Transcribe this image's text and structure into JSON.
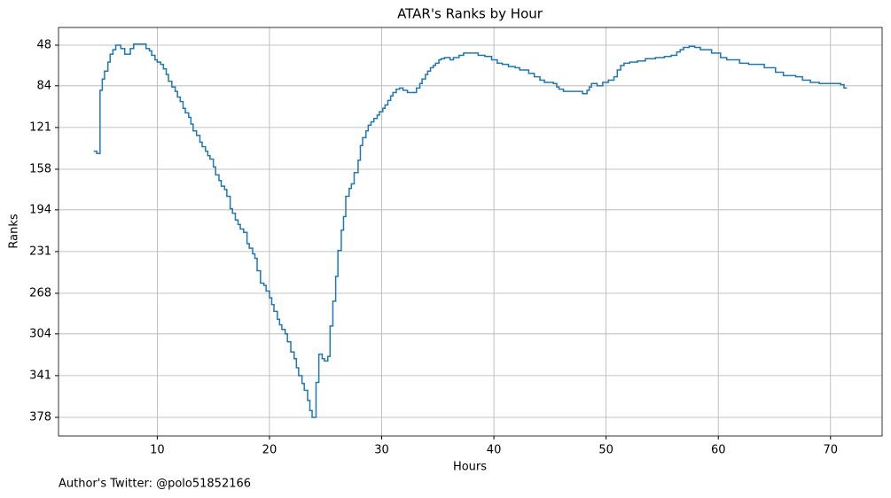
{
  "chart_data": {
    "type": "line",
    "step": "post",
    "title": "ATAR's Ranks by Hour",
    "x_label": "Hours",
    "y_label": "Ranks",
    "footnote": "Author's Twitter: @polo51852166",
    "color": "#1f77b4",
    "grid": true,
    "invert_y": true,
    "xlim": [
      1.2,
      74.6
    ],
    "xticks": [
      10,
      20,
      30,
      40,
      50,
      60,
      70
    ],
    "ylim": [
      394.5,
      32.3
    ],
    "yticks": [
      48,
      84,
      121,
      158,
      194,
      231,
      268,
      304,
      341,
      378
    ],
    "x": [
      4.4,
      4.6,
      4.9,
      5.1,
      5.3,
      5.6,
      5.8,
      6.05,
      6.3,
      6.75,
      7.1,
      7.6,
      7.9,
      9.0,
      9.3,
      9.5,
      9.8,
      10.0,
      10.3,
      10.55,
      10.8,
      11.0,
      11.3,
      11.6,
      11.8,
      12.05,
      12.3,
      12.5,
      12.8,
      13.0,
      13.2,
      13.5,
      13.8,
      14.0,
      14.3,
      14.5,
      14.7,
      15.0,
      15.2,
      15.5,
      15.7,
      16.0,
      16.2,
      16.5,
      16.7,
      16.96,
      17.2,
      17.4,
      17.7,
      18.0,
      18.2,
      18.5,
      18.7,
      18.9,
      19.2,
      19.5,
      19.7,
      20.0,
      20.2,
      20.4,
      20.7,
      20.9,
      21.1,
      21.4,
      21.6,
      21.9,
      22.2,
      22.4,
      22.6,
      22.9,
      23.1,
      23.4,
      23.6,
      23.8,
      24.15,
      24.4,
      24.7,
      24.9,
      25.2,
      25.4,
      25.65,
      25.9,
      26.1,
      26.4,
      26.6,
      26.8,
      27.1,
      27.3,
      27.55,
      27.9,
      28.1,
      28.3,
      28.6,
      28.8,
      29.05,
      29.3,
      29.6,
      29.8,
      30.1,
      30.3,
      30.55,
      30.8,
      31.0,
      31.3,
      31.6,
      31.9,
      32.3,
      32.85,
      33.1,
      33.4,
      33.6,
      33.9,
      34.1,
      34.35,
      34.6,
      34.8,
      35.1,
      35.3,
      35.6,
      36.1,
      36.4,
      36.9,
      37.3,
      38.6,
      39.2,
      39.8,
      40.3,
      40.75,
      41.3,
      41.9,
      42.3,
      43.1,
      43.6,
      44.1,
      44.5,
      45.3,
      45.6,
      45.8,
      46.2,
      47.9,
      48.3,
      48.5,
      48.7,
      49.2,
      49.7,
      50.2,
      50.7,
      51.0,
      51.3,
      51.6,
      52.1,
      52.8,
      53.5,
      54.4,
      55.2,
      55.8,
      56.3,
      56.6,
      56.9,
      57.4,
      57.9,
      58.4,
      59.4,
      60.2,
      60.75,
      61.9,
      62.7,
      64.1,
      65.1,
      65.8,
      66.9,
      67.5,
      68.2,
      69.0,
      70.9,
      71.2,
      71.4
    ],
    "values": [
      142,
      144,
      88,
      78,
      71,
      63,
      56,
      52,
      48,
      51,
      56,
      51,
      47,
      51,
      53,
      57,
      61,
      63,
      65,
      69,
      74,
      80,
      85,
      89,
      94,
      98,
      104,
      108,
      112,
      118,
      124,
      128,
      134,
      138,
      142,
      146,
      149,
      156,
      163,
      168,
      173,
      176,
      182,
      193,
      197,
      203,
      207,
      211,
      214,
      224,
      228,
      233,
      237,
      248,
      259,
      261,
      266,
      272,
      278,
      284,
      291,
      296,
      300,
      304,
      311,
      320,
      326,
      334,
      341,
      348,
      354,
      363,
      372,
      378,
      347,
      322,
      326,
      328,
      324,
      297,
      275,
      253,
      230,
      212,
      200,
      182,
      175,
      171,
      161,
      150,
      137,
      130,
      124,
      119,
      116,
      113,
      110,
      107,
      104,
      101,
      97,
      93,
      90,
      87,
      86,
      88,
      90,
      90,
      86,
      82,
      78,
      74,
      71,
      68,
      66,
      64,
      61,
      60,
      59,
      61,
      59,
      57,
      55,
      57,
      58,
      61,
      64,
      65,
      67,
      68,
      70,
      73,
      76,
      79,
      81,
      82,
      85,
      87,
      89,
      91,
      88,
      85,
      82,
      84,
      81,
      79,
      76,
      70,
      66,
      64,
      63,
      62,
      60,
      59,
      58,
      57,
      54,
      52,
      50,
      49,
      50,
      52,
      55,
      59,
      61,
      64,
      65,
      68,
      72,
      75,
      76,
      79,
      81,
      82,
      83,
      86,
      86
    ]
  }
}
